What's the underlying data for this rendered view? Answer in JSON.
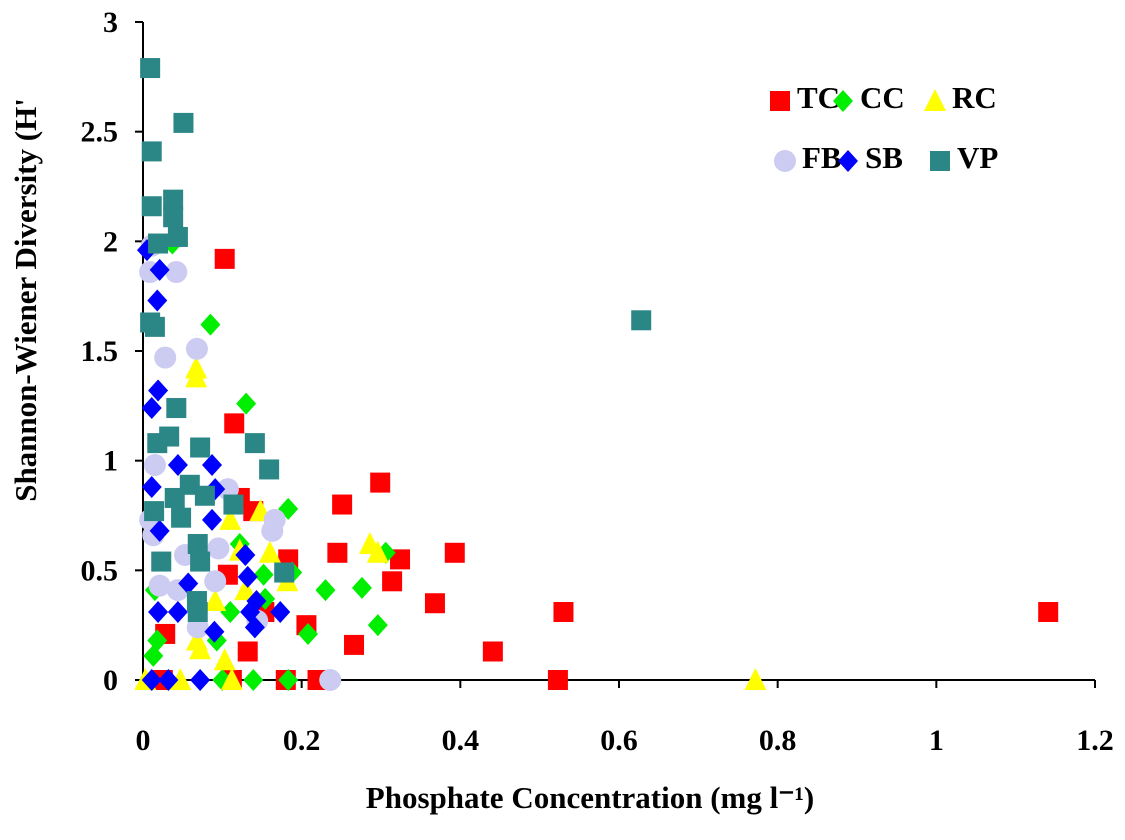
{
  "chart_data": {
    "type": "scatter",
    "x_label": "Phosphate Concentration (mg l⁻¹)",
    "y_label": "Shannon-Wiener Diversity (H'",
    "xlim": [
      0,
      1.2
    ],
    "ylim": [
      0,
      3
    ],
    "xticks": [
      0,
      0.2,
      0.4,
      0.6,
      0.8,
      1,
      1.2
    ],
    "yticks": [
      0,
      0.5,
      1,
      1.5,
      2,
      2.5,
      3
    ],
    "grid": false,
    "legend_position": "upper right",
    "legend_columns": 3,
    "series": [
      {
        "name": "TC",
        "color": "#ff0000",
        "marker": "square",
        "x": [
          0.103,
          0.115,
          0.299,
          0.251,
          0.245,
          0.324,
          0.314,
          0.393,
          0.368,
          0.441,
          0.53,
          0.523,
          1.141,
          0.266,
          0.206,
          0.22,
          0.183,
          0.132,
          0.139,
          0.122,
          0.112,
          0.028,
          0.025,
          0.153,
          0.18,
          0.107
        ],
        "values": [
          1.92,
          1.17,
          0.9,
          0.8,
          0.58,
          0.55,
          0.45,
          0.58,
          0.35,
          0.13,
          0.31,
          0,
          0.31,
          0.16,
          0.25,
          0,
          0.55,
          0.13,
          0.77,
          0.83,
          0,
          0.21,
          0,
          0.31,
          0,
          0.48
        ]
      },
      {
        "name": "CC",
        "color": "#00ee00",
        "marker": "diamond",
        "x": [
          0.085,
          0.13,
          0.183,
          0.037,
          0.23,
          0.276,
          0.296,
          0.208,
          0.306,
          0.154,
          0.152,
          0.139,
          0.183,
          0.018,
          0.013,
          0.1,
          0.122,
          0.188,
          0.093,
          0.015,
          0.11
        ],
        "values": [
          1.62,
          1.26,
          0.78,
          1.99,
          0.41,
          0.42,
          0.25,
          0.21,
          0.58,
          0.37,
          0.48,
          0,
          0,
          0.18,
          0.11,
          0,
          0.62,
          0.49,
          0.18,
          0.41,
          0.31
        ]
      },
      {
        "name": "RC",
        "color": "#ffff00",
        "marker": "triangle",
        "x": [
          0.772,
          0.286,
          0.296,
          0.067,
          0.067,
          0.182,
          0.148,
          0.122,
          0.072,
          0.103,
          0.112,
          0.047,
          0.003,
          0.16,
          0.11,
          0.129,
          0.068,
          0.091
        ],
        "values": [
          0,
          0.62,
          0.58,
          1.42,
          1.38,
          0.45,
          0.77,
          0.59,
          0.14,
          0.09,
          0,
          0,
          0,
          0.58,
          0.73,
          0.41,
          0.18,
          0.36
        ]
      },
      {
        "name": "FB",
        "color": "#ccccf2",
        "marker": "circle",
        "x": [
          0.042,
          0.009,
          0.068,
          0.028,
          0.015,
          0.013,
          0.021,
          0.069,
          0.144,
          0.166,
          0.163,
          0.236,
          0.107,
          0.095,
          0.009,
          0.053,
          0.044,
          0.091,
          0.011
        ],
        "values": [
          1.86,
          1.86,
          1.51,
          1.47,
          0.98,
          0.66,
          0.43,
          0.24,
          0.27,
          0.73,
          0.68,
          0,
          0.87,
          0.6,
          0.73,
          0.57,
          0.41,
          0.45,
          1.98
        ]
      },
      {
        "name": "SB",
        "color": "#0000ff",
        "marker": "diamond",
        "x": [
          0.005,
          0.021,
          0.018,
          0.011,
          0.019,
          0.011,
          0.044,
          0.087,
          0.021,
          0.019,
          0.044,
          0.09,
          0.173,
          0.135,
          0.132,
          0.141,
          0.087,
          0.011,
          0.032,
          0.072,
          0.057,
          0.143,
          0.129,
          0.091
        ],
        "values": [
          1.96,
          1.87,
          1.73,
          1.24,
          1.32,
          0.88,
          0.98,
          0.98,
          0.68,
          0.31,
          0.31,
          0.22,
          0.31,
          0.31,
          0.47,
          0.24,
          0.73,
          0,
          0,
          0,
          0.44,
          0.36,
          0.57,
          0.87
        ]
      },
      {
        "name": "VP",
        "color": "#2b8686",
        "marker": "square",
        "x": [
          0.009,
          0.051,
          0.011,
          0.011,
          0.038,
          0.038,
          0.044,
          0.019,
          0.009,
          0.015,
          0.628,
          0.042,
          0.033,
          0.018,
          0.072,
          0.141,
          0.159,
          0.014,
          0.059,
          0.04,
          0.078,
          0.114,
          0.048,
          0.069,
          0.072,
          0.023,
          0.178,
          0.068,
          0.069
        ],
        "values": [
          2.79,
          2.54,
          2.41,
          2.16,
          2.19,
          2.11,
          2.02,
          1.99,
          1.63,
          1.61,
          1.64,
          1.24,
          1.11,
          1.08,
          1.06,
          1.08,
          0.96,
          0.77,
          0.89,
          0.83,
          0.84,
          0.8,
          0.74,
          0.62,
          0.54,
          0.54,
          0.49,
          0.36,
          0.31
        ]
      }
    ]
  }
}
